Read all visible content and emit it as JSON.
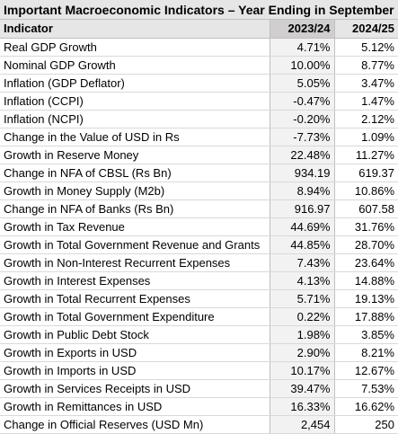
{
  "title": "Important Macroeconomic Indicators – Year Ending in September",
  "table": {
    "columns": [
      "Indicator",
      "2023/24",
      "2024/25"
    ],
    "rows": [
      [
        "Real GDP Growth",
        "4.71%",
        "5.12%"
      ],
      [
        "Nominal GDP Growth",
        "10.00%",
        "8.77%"
      ],
      [
        "Inflation (GDP Deflator)",
        "5.05%",
        "3.47%"
      ],
      [
        "Inflation (CCPI)",
        "-0.47%",
        "1.47%"
      ],
      [
        "Inflation (NCPI)",
        "-0.20%",
        "2.12%"
      ],
      [
        "Change in the Value of USD in Rs",
        "-7.73%",
        "1.09%"
      ],
      [
        "Growth in Reserve Money",
        "22.48%",
        "11.27%"
      ],
      [
        "Change in NFA of CBSL (Rs Bn)",
        "934.19",
        "619.37"
      ],
      [
        "Growth in Money Supply (M2b)",
        "8.94%",
        "10.86%"
      ],
      [
        "Change in NFA of Banks (Rs Bn)",
        "916.97",
        "607.58"
      ],
      [
        "Growth in Tax Revenue",
        "44.69%",
        "31.76%"
      ],
      [
        "Growth in Total Government Revenue and Grants",
        "44.85%",
        "28.70%"
      ],
      [
        "Growth in Non-Interest Recurrent Expenses",
        "7.43%",
        "23.64%"
      ],
      [
        "Growth in Interest Expenses",
        "4.13%",
        "14.88%"
      ],
      [
        "Growth in Total Recurrent Expenses",
        "5.71%",
        "19.13%"
      ],
      [
        "Growth in Total Government Expenditure",
        "0.22%",
        "17.88%"
      ],
      [
        "Growth in Public Debt Stock",
        "1.98%",
        "3.85%"
      ],
      [
        "Growth in Exports in USD",
        "2.90%",
        "8.21%"
      ],
      [
        "Growth in Imports in USD",
        "10.17%",
        "12.67%"
      ],
      [
        "Growth in Services Receipts in USD",
        "39.47%",
        "7.53%"
      ],
      [
        "Growth in Remittances in USD",
        "16.33%",
        "16.62%"
      ],
      [
        "Change in Official Reserves (USD Mn)",
        "2,454",
        "250"
      ]
    ]
  }
}
